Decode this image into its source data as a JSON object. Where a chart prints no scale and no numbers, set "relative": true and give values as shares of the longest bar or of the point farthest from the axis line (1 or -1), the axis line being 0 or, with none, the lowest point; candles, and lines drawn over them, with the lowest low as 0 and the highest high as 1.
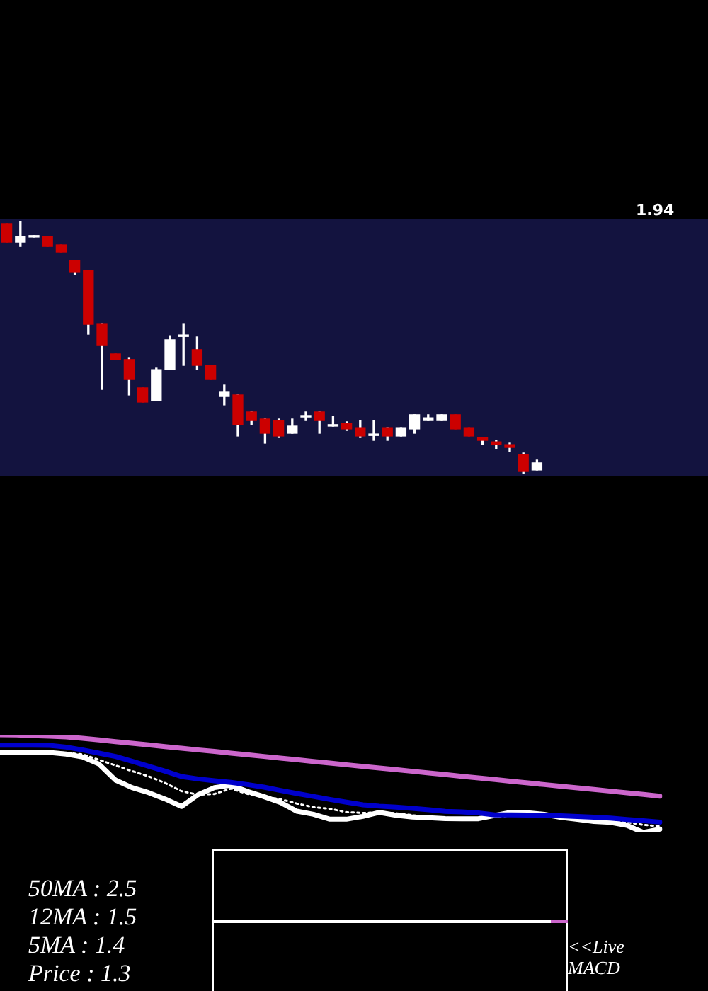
{
  "chart_data": [
    {
      "type": "candlestick",
      "relative": true,
      "annotations": [
        "1.94"
      ],
      "categories": [
        null,
        null,
        null,
        null,
        null,
        null,
        null,
        null,
        null,
        null,
        null,
        null,
        null,
        null,
        null,
        null,
        null,
        null,
        null,
        null,
        null,
        null,
        null,
        null,
        null,
        null,
        null,
        null,
        null,
        null,
        null,
        null,
        null,
        null,
        null,
        null,
        null,
        null,
        null,
        null
      ],
      "ohlc": [
        [
          0.989,
          0.989,
          0.916,
          0.916
        ],
        [
          0.916,
          1,
          0.899,
          0.939
        ],
        [
          0.936,
          0.942,
          0.936,
          0.942
        ],
        [
          0.939,
          0.939,
          0.899,
          0.899
        ],
        [
          0.905,
          0.905,
          0.877,
          0.877
        ],
        [
          0.844,
          0.844,
          0.788,
          0.799
        ],
        [
          0.804,
          0.804,
          0.553,
          0.592
        ],
        [
          0.592,
          0.592,
          0.335,
          0.508
        ],
        [
          0.475,
          0.475,
          0.453,
          0.453
        ],
        [
          0.453,
          0.458,
          0.313,
          0.374
        ],
        [
          0.341,
          0.341,
          0.285,
          0.285
        ],
        [
          0.291,
          0.419,
          0.291,
          0.413
        ],
        [
          0.413,
          0.547,
          0.413,
          0.531
        ],
        [
          0.544,
          0.592,
          0.43,
          0.55
        ],
        [
          0.492,
          0.542,
          0.413,
          0.43
        ],
        [
          0.43,
          0.43,
          0.374,
          0.374
        ],
        [
          0.307,
          0.352,
          0.274,
          0.324
        ],
        [
          0.313,
          0.313,
          0.151,
          0.196
        ],
        [
          0.246,
          0.246,
          0.196,
          0.212
        ],
        [
          0.218,
          0.218,
          0.123,
          0.162
        ],
        [
          0.212,
          0.218,
          0.145,
          0.151
        ],
        [
          0.162,
          0.218,
          0.162,
          0.19
        ],
        [
          0.226,
          0.246,
          0.212,
          0.232
        ],
        [
          0.246,
          0.246,
          0.162,
          0.212
        ],
        [
          0.19,
          0.229,
          0.19,
          0.196
        ],
        [
          0.201,
          0.207,
          0.173,
          0.179
        ],
        [
          0.184,
          0.212,
          0.145,
          0.151
        ],
        [
          0.153,
          0.212,
          0.134,
          0.159
        ],
        [
          0.184,
          0.184,
          0.134,
          0.151
        ],
        [
          0.151,
          0.184,
          0.151,
          0.184
        ],
        [
          0.179,
          0.235,
          0.162,
          0.235
        ],
        [
          0.212,
          0.235,
          0.212,
          0.223
        ],
        [
          0.212,
          0.235,
          0.212,
          0.235
        ],
        [
          0.235,
          0.235,
          0.179,
          0.179
        ],
        [
          0.184,
          0.184,
          0.151,
          0.151
        ],
        [
          0.145,
          0.145,
          0.117,
          0.134
        ],
        [
          0.128,
          0.134,
          0.101,
          0.117
        ],
        [
          0.117,
          0.123,
          0.089,
          0.106
        ],
        [
          0.078,
          0.084,
          0,
          0.011
        ],
        [
          0.017,
          0.056,
          0.017,
          0.045
        ]
      ],
      "colors": [
        "#cc0000",
        "#ffffff",
        "#ffffff",
        "#cc0000",
        "#cc0000",
        "#cc0000",
        "#cc0000",
        "#cc0000",
        "#cc0000",
        "#cc0000",
        "#cc0000",
        "#ffffff",
        "#ffffff",
        "#ffffff",
        "#cc0000",
        "#cc0000",
        "#ffffff",
        "#cc0000",
        "#cc0000",
        "#cc0000",
        "#cc0000",
        "#ffffff",
        "#ffffff",
        "#cc0000",
        "#ffffff",
        "#cc0000",
        "#cc0000",
        "#ffffff",
        "#cc0000",
        "#ffffff",
        "#ffffff",
        "#ffffff",
        "#ffffff",
        "#cc0000",
        "#cc0000",
        "#cc0000",
        "#cc0000",
        "#cc0000",
        "#cc0000",
        "#ffffff"
      ]
    },
    {
      "type": "line",
      "relative": true,
      "annotations": [
        "50MA : 2.5",
        "12MA : 1.5",
        "5MA : 1.4",
        "Price : 1.3"
      ],
      "categories": [
        null,
        null,
        null,
        null,
        null,
        null,
        null,
        null,
        null,
        null,
        null,
        null,
        null,
        null,
        null,
        null,
        null,
        null,
        null,
        null,
        null,
        null,
        null,
        null,
        null,
        null,
        null,
        null,
        null,
        null,
        null,
        null,
        null,
        null,
        null,
        null,
        null,
        null,
        null,
        null,
        null
      ],
      "series": [
        {
          "color": "#cc66cc",
          "values": [
            1,
            0.998,
            0.991,
            0.985,
            0.978,
            0.964,
            0.947,
            0.93,
            0.913,
            0.896,
            0.879,
            0.862,
            0.845,
            0.829,
            0.812,
            0.795,
            0.778,
            0.761,
            0.744,
            0.727,
            0.71,
            0.693,
            0.676,
            0.659,
            0.643,
            0.626,
            0.609,
            0.592,
            0.575,
            0.558,
            0.541,
            0.524,
            0.507,
            0.49,
            0.473,
            0.457,
            0.44,
            0.423,
            0.406,
            0.389,
            0.372
          ]
        },
        {
          "color": "#0000cc",
          "values": [
            0.894,
            0.894,
            0.894,
            0.891,
            0.874,
            0.845,
            0.812,
            0.778,
            0.729,
            0.679,
            0.628,
            0.573,
            0.548,
            0.529,
            0.512,
            0.49,
            0.464,
            0.43,
            0.399,
            0.369,
            0.338,
            0.31,
            0.283,
            0.269,
            0.259,
            0.246,
            0.232,
            0.215,
            0.21,
            0.199,
            0.179,
            0.179,
            0.177,
            0.173,
            0.17,
            0.163,
            0.155,
            0.146,
            0.133,
            0.119,
            0.106
          ]
        },
        {
          "color": "#ffffff",
          "line_style": "dotted",
          "values": [
            0.836,
            0.834,
            0.832,
            0.829,
            0.814,
            0.799,
            0.744,
            0.686,
            0.628,
            0.575,
            0.507,
            0.423,
            0.386,
            0.394,
            0.449,
            0.394,
            0.365,
            0.341,
            0.295,
            0.259,
            0.242,
            0.208,
            0.199,
            0.206,
            0.196,
            0.176,
            0.157,
            0.151,
            0.144,
            0.146,
            0.159,
            0.173,
            0.179,
            0.177,
            0.163,
            0.15,
            0.136,
            0.123,
            0.105,
            0.077,
            0.063
          ]
        },
        {
          "color": "#ffffff",
          "values": [
            0.821,
            0.821,
            0.821,
            0.819,
            0.802,
            0.773,
            0.7,
            0.536,
            0.459,
            0.408,
            0.343,
            0.266,
            0.386,
            0.459,
            0.483,
            0.42,
            0.367,
            0.307,
            0.217,
            0.186,
            0.135,
            0.135,
            0.164,
            0.205,
            0.176,
            0.158,
            0.15,
            0.141,
            0.14,
            0.14,
            0.174,
            0.207,
            0.202,
            0.185,
            0.154,
            0.133,
            0.113,
            0.103,
            0.072,
            0,
            0.034
          ]
        }
      ]
    },
    {
      "type": "other",
      "annotations": [
        "<<Live",
        "MACD"
      ]
    }
  ]
}
